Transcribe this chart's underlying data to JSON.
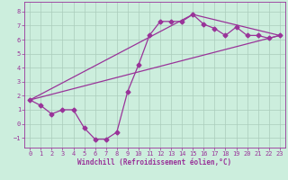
{
  "background_color": "#cceedd",
  "grid_color": "#aaccbb",
  "line_color": "#993399",
  "xlabel": "Windchill (Refroidissement éolien,°C)",
  "xlim": [
    -0.5,
    23.5
  ],
  "ylim": [
    -1.7,
    8.7
  ],
  "yticks": [
    -1,
    0,
    1,
    2,
    3,
    4,
    5,
    6,
    7,
    8
  ],
  "xticks": [
    0,
    1,
    2,
    3,
    4,
    5,
    6,
    7,
    8,
    9,
    10,
    11,
    12,
    13,
    14,
    15,
    16,
    17,
    18,
    19,
    20,
    21,
    22,
    23
  ],
  "curve1_x": [
    0,
    1,
    2,
    3,
    4,
    5,
    6,
    7,
    8,
    9,
    10,
    11,
    12,
    13,
    14,
    15,
    16,
    17,
    18,
    19,
    20,
    21,
    22,
    23
  ],
  "curve1_y": [
    1.7,
    1.3,
    0.7,
    1.0,
    1.0,
    -0.3,
    -1.1,
    -1.1,
    -0.6,
    2.3,
    4.2,
    6.3,
    7.3,
    7.3,
    7.3,
    7.8,
    7.1,
    6.8,
    6.3,
    6.9,
    6.3,
    6.3,
    6.1,
    6.3
  ],
  "curve2_x": [
    0,
    23
  ],
  "curve2_y": [
    1.7,
    6.3
  ],
  "curve3_x": [
    0,
    15,
    23
  ],
  "curve3_y": [
    1.7,
    7.8,
    6.3
  ],
  "marker_size": 2.5,
  "line_width": 0.9,
  "tick_fontsize": 5.0,
  "xlabel_fontsize": 5.5
}
